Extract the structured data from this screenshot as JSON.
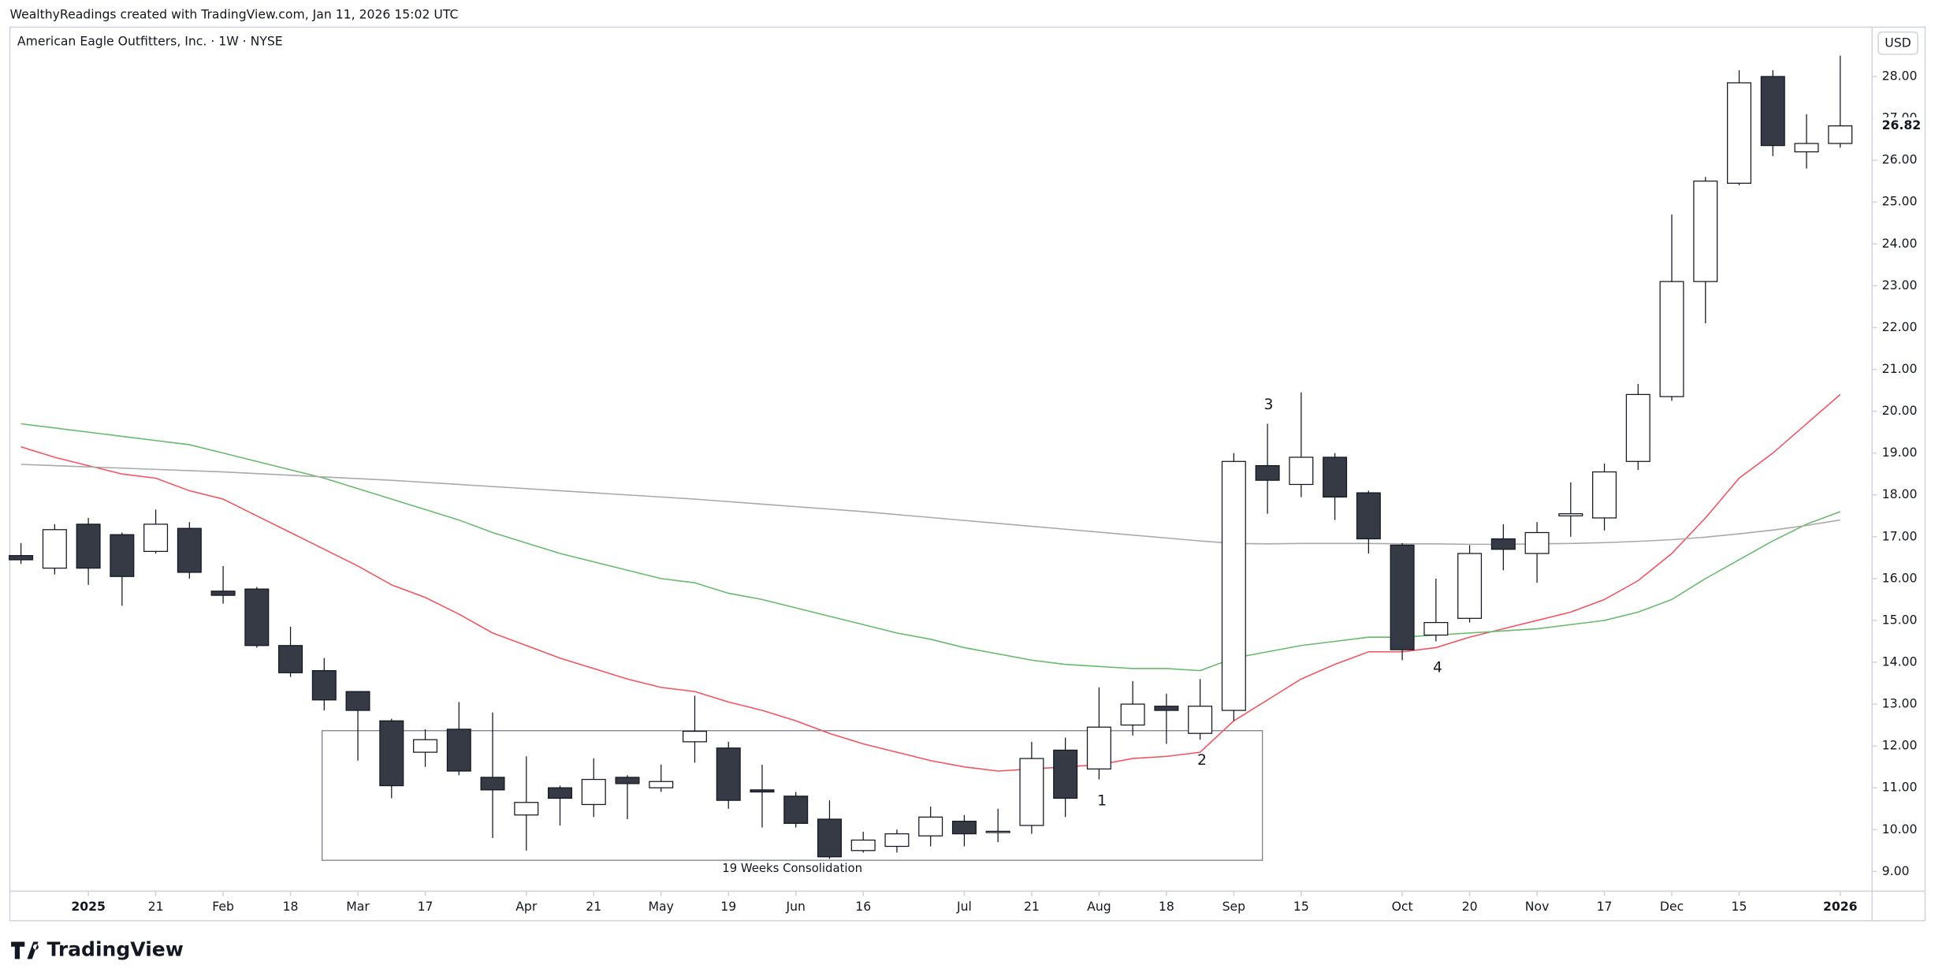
{
  "header": "WealthyReadings created with TradingView.com, Jan 11, 2026 15:02 UTC",
  "brand": "TradingView",
  "chart_data": {
    "type": "candlestick",
    "title": "American Eagle Outfitters, Inc. · 1W · NYSE",
    "currency": "USD",
    "categories": [
      null,
      null,
      "2025",
      null,
      "21",
      null,
      "Feb",
      null,
      "18",
      null,
      "Mar",
      null,
      "17",
      null,
      null,
      "Apr",
      null,
      "21",
      null,
      "May",
      null,
      "19",
      null,
      "Jun",
      null,
      "16",
      null,
      null,
      "Jul",
      null,
      "21",
      null,
      "Aug",
      null,
      "18",
      null,
      "Sep",
      null,
      "15",
      null,
      null,
      "Oct",
      null,
      "20",
      null,
      "Nov",
      null,
      "17",
      null,
      "Dec",
      null,
      "15",
      null,
      null,
      "2026"
    ],
    "open": [
      16.55,
      16.25,
      17.3,
      17.05,
      16.65,
      17.2,
      15.7,
      15.75,
      14.4,
      13.8,
      13.3,
      12.6,
      11.85,
      12.4,
      11.25,
      10.35,
      11.0,
      10.6,
      11.25,
      11.0,
      12.1,
      11.95,
      10.95,
      10.8,
      10.25,
      9.5,
      9.6,
      9.85,
      10.2,
      9.93,
      10.1,
      11.9,
      11.45,
      12.5,
      12.95,
      12.3,
      12.85,
      18.7,
      18.25,
      18.9,
      18.05,
      16.8,
      14.65,
      15.05,
      16.95,
      16.6,
      17.5,
      17.45,
      18.8,
      20.35,
      23.1,
      25.45,
      28.0,
      26.2,
      26.4
    ],
    "high": [
      16.85,
      17.3,
      17.45,
      17.1,
      17.65,
      17.35,
      16.3,
      15.8,
      14.85,
      14.1,
      13.3,
      12.65,
      12.4,
      13.05,
      12.8,
      11.75,
      11.05,
      11.7,
      11.3,
      11.55,
      13.2,
      12.1,
      11.55,
      10.9,
      10.7,
      9.95,
      10.0,
      10.55,
      10.35,
      10.5,
      12.1,
      12.2,
      13.4,
      13.55,
      13.25,
      13.6,
      19.0,
      19.7,
      20.45,
      19.0,
      18.1,
      16.85,
      16.0,
      16.8,
      17.3,
      17.35,
      18.3,
      18.75,
      20.65,
      24.7,
      25.6,
      28.15,
      28.15,
      27.1,
      28.5
    ],
    "low": [
      16.35,
      16.1,
      15.85,
      15.35,
      16.6,
      16.0,
      15.4,
      14.35,
      13.65,
      12.85,
      11.65,
      10.75,
      11.5,
      11.3,
      9.8,
      9.5,
      10.1,
      10.3,
      10.25,
      10.9,
      11.6,
      10.5,
      10.05,
      10.05,
      9.3,
      9.45,
      9.45,
      9.6,
      9.6,
      9.7,
      9.9,
      10.3,
      11.2,
      12.25,
      12.05,
      12.15,
      12.6,
      17.55,
      17.95,
      17.4,
      16.6,
      14.05,
      14.5,
      14.95,
      16.2,
      15.9,
      17.0,
      17.15,
      18.6,
      20.25,
      22.1,
      25.4,
      26.1,
      25.8,
      26.3
    ],
    "close": [
      16.45,
      17.17,
      16.25,
      16.05,
      17.3,
      16.15,
      15.6,
      14.4,
      13.75,
      13.1,
      12.85,
      11.05,
      12.15,
      11.4,
      10.95,
      10.65,
      10.75,
      11.2,
      11.1,
      11.15,
      12.35,
      10.7,
      10.9,
      10.15,
      9.35,
      9.75,
      9.9,
      10.3,
      9.9,
      9.96,
      11.7,
      10.75,
      12.45,
      13.0,
      12.85,
      12.95,
      18.8,
      18.35,
      18.9,
      17.95,
      16.95,
      14.3,
      14.95,
      16.6,
      16.7,
      17.1,
      17.55,
      18.55,
      20.4,
      23.1,
      25.5,
      27.85,
      26.35,
      26.4,
      26.82
    ],
    "up_color": "#ffffff",
    "down_color": "#363a45",
    "series": [
      {
        "color": "#f7525f",
        "values": [
          19.15,
          18.9,
          18.7,
          18.5,
          18.4,
          18.1,
          17.9,
          17.5,
          17.1,
          16.7,
          16.3,
          15.85,
          15.55,
          15.15,
          14.7,
          14.4,
          14.1,
          13.85,
          13.6,
          13.4,
          13.3,
          13.05,
          12.85,
          12.6,
          12.3,
          12.05,
          11.85,
          11.65,
          11.5,
          11.4,
          11.45,
          11.5,
          11.55,
          11.7,
          11.75,
          11.85,
          12.6,
          13.1,
          13.6,
          13.95,
          14.25,
          14.25,
          14.35,
          14.6,
          14.8,
          15.0,
          15.2,
          15.5,
          15.95,
          16.6,
          17.45,
          18.4,
          19.0,
          19.7,
          20.4
        ]
      },
      {
        "color": "#66bb6a",
        "values": [
          19.7,
          19.6,
          19.5,
          19.4,
          19.3,
          19.2,
          19.0,
          18.8,
          18.6,
          18.4,
          18.15,
          17.9,
          17.65,
          17.4,
          17.1,
          16.85,
          16.6,
          16.4,
          16.2,
          16.0,
          15.9,
          15.65,
          15.5,
          15.3,
          15.1,
          14.9,
          14.7,
          14.55,
          14.35,
          14.2,
          14.05,
          13.95,
          13.9,
          13.85,
          13.85,
          13.8,
          14.1,
          14.25,
          14.4,
          14.5,
          14.6,
          14.6,
          14.65,
          14.7,
          14.75,
          14.8,
          14.9,
          15.0,
          15.2,
          15.5,
          16.0,
          16.45,
          16.9,
          17.3,
          17.6
        ]
      },
      {
        "color": "#a9a9a9",
        "values": [
          18.73,
          18.7,
          18.67,
          18.64,
          18.61,
          18.58,
          18.55,
          18.51,
          18.47,
          18.43,
          18.39,
          18.35,
          18.3,
          18.25,
          18.2,
          18.15,
          18.1,
          18.05,
          18.0,
          17.95,
          17.9,
          17.84,
          17.78,
          17.72,
          17.66,
          17.6,
          17.53,
          17.46,
          17.39,
          17.32,
          17.25,
          17.18,
          17.11,
          17.04,
          16.97,
          16.9,
          16.84,
          16.83,
          16.84,
          16.84,
          16.84,
          16.83,
          16.83,
          16.82,
          16.82,
          16.83,
          16.84,
          16.86,
          16.89,
          16.93,
          16.99,
          17.07,
          17.16,
          17.27,
          17.4
        ]
      }
    ],
    "ylim": [
      8.53,
      29.18
    ],
    "yticks": [
      {
        "value": 9,
        "label": "9.00"
      },
      {
        "value": 10,
        "label": "10.00"
      },
      {
        "value": 11,
        "label": "11.00"
      },
      {
        "value": 12,
        "label": "12.00"
      },
      {
        "value": 13,
        "label": "13.00"
      },
      {
        "value": 14,
        "label": "14.00"
      },
      {
        "value": 15,
        "label": "15.00"
      },
      {
        "value": 16,
        "label": "16.00"
      },
      {
        "value": 17,
        "label": "17.00"
      },
      {
        "value": 18,
        "label": "18.00"
      },
      {
        "value": 19,
        "label": "19.00"
      },
      {
        "value": 20,
        "label": "20.00"
      },
      {
        "value": 21,
        "label": "21.00"
      },
      {
        "value": 22,
        "label": "22.00"
      },
      {
        "value": 23,
        "label": "23.00"
      },
      {
        "value": 24,
        "label": "24.00"
      },
      {
        "value": 25,
        "label": "25.00"
      },
      {
        "value": 26,
        "label": "26.00"
      },
      {
        "value": 27,
        "label": "27.00"
      },
      {
        "value": 28,
        "label": "28.00"
      }
    ],
    "annotations": [
      "3",
      "2",
      "1",
      "4",
      "19 Weeks Consolidation"
    ]
  }
}
